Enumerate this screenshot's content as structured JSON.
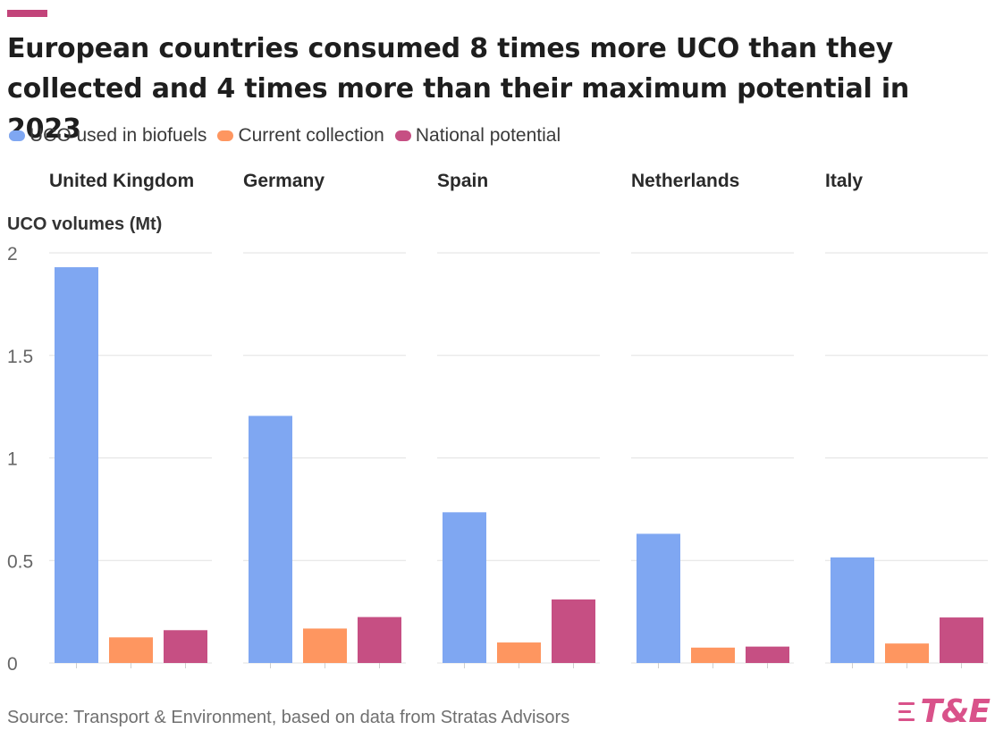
{
  "title": "European countries consumed 8 times more UCO than they collected and 4 times more than their maximum potential in 2023",
  "legend": [
    {
      "label": "UCO used in biofuels",
      "color": "#7fa7f2"
    },
    {
      "label": "Current collection",
      "color": "#fe9660"
    },
    {
      "label": "National potential",
      "color": "#c64f83"
    }
  ],
  "footer": {
    "source": "Source: Transport & Environment, based on data from Stratas Advisors",
    "logo": "T&E"
  },
  "chart_data": {
    "type": "bar",
    "ylabel": "UCO volumes (Mt)",
    "ylim": [
      0,
      2
    ],
    "yticks": [
      "0",
      "0.5",
      "1",
      "1.5",
      "2"
    ],
    "grid": true,
    "legend_position": "top-left",
    "series": [
      {
        "name": "UCO used in biofuels",
        "color": "#7fa7f2"
      },
      {
        "name": "Current collection",
        "color": "#fe9660"
      },
      {
        "name": "National potential",
        "color": "#c64f83"
      }
    ],
    "panels": [
      {
        "title": "United Kingdom",
        "values": [
          1.93,
          0.125,
          0.16
        ]
      },
      {
        "title": "Germany",
        "values": [
          1.205,
          0.168,
          0.224
        ]
      },
      {
        "title": "Spain",
        "values": [
          0.735,
          0.1,
          0.31
        ]
      },
      {
        "title": "Netherlands",
        "values": [
          0.63,
          0.075,
          0.08
        ]
      },
      {
        "title": "Italy",
        "values": [
          0.515,
          0.095,
          0.222
        ]
      }
    ]
  }
}
